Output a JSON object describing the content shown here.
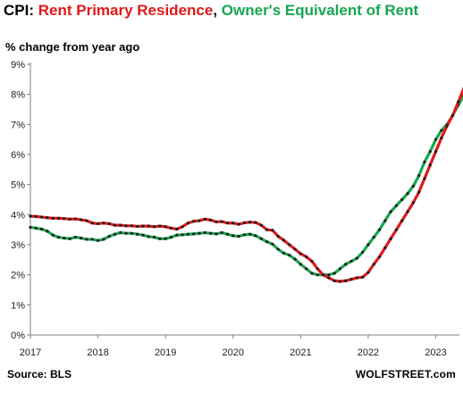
{
  "title": {
    "prefix": "CPI: ",
    "rent_label": "Rent Primary  Residence",
    "separator": ", ",
    "oer_label": "Owner's Equivalent of Rent"
  },
  "subtitle": "% change from year ago",
  "source": "Source: BLS",
  "brand": "WOLFSTREET.com",
  "colors": {
    "prefix": "#000000",
    "rent": "#e0191b",
    "oer": "#17a650",
    "dot": "#1d1d1d",
    "axis": "#7f7f7f"
  },
  "chart_data": {
    "type": "line",
    "xlabel": "",
    "ylabel": "",
    "x_start": "2017-01",
    "x_interval": "monthly",
    "x_ticks": [
      2017,
      2018,
      2019,
      2020,
      2021,
      2022,
      2023
    ],
    "y_ticks": [
      0,
      1,
      2,
      3,
      4,
      5,
      6,
      7,
      8,
      9
    ],
    "y_tick_labels": [
      "0%",
      "1%",
      "2%",
      "3%",
      "4%",
      "5%",
      "6%",
      "7%",
      "8%",
      "9%"
    ],
    "ylim": [
      0,
      9
    ],
    "grid": false,
    "legend": "in title",
    "series": [
      {
        "name": "Rent Primary  Residence",
        "color_key": "rent",
        "values": [
          3.95,
          3.94,
          3.92,
          3.9,
          3.88,
          3.88,
          3.87,
          3.85,
          3.86,
          3.83,
          3.8,
          3.72,
          3.7,
          3.72,
          3.7,
          3.65,
          3.65,
          3.63,
          3.63,
          3.61,
          3.62,
          3.62,
          3.6,
          3.62,
          3.6,
          3.55,
          3.52,
          3.6,
          3.72,
          3.78,
          3.8,
          3.85,
          3.82,
          3.76,
          3.77,
          3.72,
          3.72,
          3.68,
          3.73,
          3.75,
          3.74,
          3.65,
          3.5,
          3.48,
          3.28,
          3.15,
          3.0,
          2.85,
          2.7,
          2.6,
          2.45,
          2.2,
          2.0,
          1.9,
          1.8,
          1.78,
          1.8,
          1.85,
          1.9,
          1.92,
          2.08,
          2.35,
          2.6,
          2.9,
          3.2,
          3.5,
          3.8,
          4.1,
          4.4,
          4.75,
          5.2,
          5.65,
          6.1,
          6.55,
          6.95,
          7.3,
          7.75,
          8.2,
          8.45,
          8.62,
          8.75,
          8.8,
          8.8,
          8.65
        ]
      },
      {
        "name": "Owner's Equivalent of Rent",
        "color_key": "oer",
        "values": [
          3.58,
          3.55,
          3.52,
          3.45,
          3.32,
          3.25,
          3.22,
          3.2,
          3.25,
          3.22,
          3.18,
          3.18,
          3.14,
          3.18,
          3.28,
          3.35,
          3.4,
          3.38,
          3.38,
          3.35,
          3.32,
          3.27,
          3.25,
          3.2,
          3.2,
          3.25,
          3.32,
          3.33,
          3.35,
          3.36,
          3.38,
          3.4,
          3.38,
          3.36,
          3.4,
          3.35,
          3.3,
          3.28,
          3.33,
          3.35,
          3.3,
          3.2,
          3.1,
          3.02,
          2.85,
          2.72,
          2.65,
          2.52,
          2.35,
          2.2,
          2.05,
          2.0,
          2.0,
          2.0,
          2.05,
          2.2,
          2.35,
          2.45,
          2.55,
          2.75,
          3.0,
          3.25,
          3.5,
          3.8,
          4.1,
          4.3,
          4.5,
          4.7,
          4.95,
          5.3,
          5.75,
          6.1,
          6.5,
          6.8,
          7.0,
          7.3,
          7.65,
          7.95,
          8.05,
          8.05,
          8.1,
          8.1,
          8.05,
          8.0
        ]
      }
    ]
  }
}
